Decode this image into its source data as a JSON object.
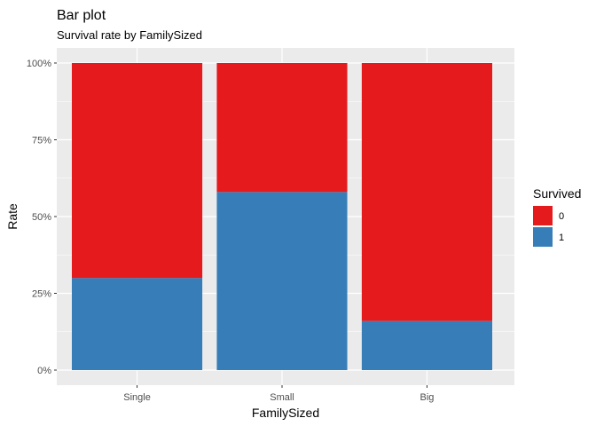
{
  "chart_data": {
    "type": "bar",
    "stacked": true,
    "title": "Bar plot",
    "subtitle": "Survival rate by FamilySized",
    "xlabel": "FamilySized",
    "ylabel": "Rate",
    "categories": [
      "Single",
      "Small",
      "Big"
    ],
    "series": [
      {
        "name": "1",
        "values": [
          0.3,
          0.58,
          0.16
        ],
        "color": "#377eb8"
      },
      {
        "name": "0",
        "values": [
          0.7,
          0.42,
          0.84
        ],
        "color": "#e41a1c"
      }
    ],
    "ylim": [
      0,
      1
    ],
    "yticks": [
      0,
      0.25,
      0.5,
      0.75,
      1
    ],
    "ytick_labels": [
      "0%",
      "25%",
      "50%",
      "75%",
      "100%"
    ],
    "grid": true,
    "panel_background": "#ebebeb",
    "legend": {
      "title": "Survived",
      "placement": "right",
      "entries": [
        {
          "label": "0",
          "color": "#e41a1c"
        },
        {
          "label": "1",
          "color": "#377eb8"
        }
      ]
    }
  }
}
